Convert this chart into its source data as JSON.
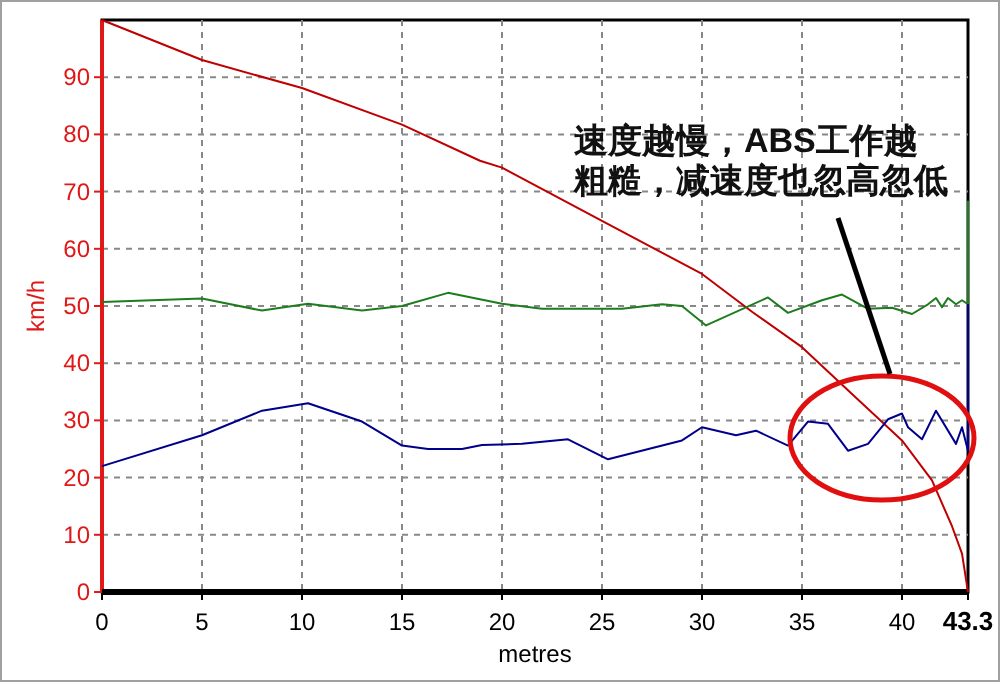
{
  "chart_data": {
    "type": "line",
    "xlabel": "metres",
    "ylabel": "km/h",
    "xlim": [
      0,
      43.3
    ],
    "ylim": [
      0,
      100
    ],
    "xticks": [
      0,
      5,
      10,
      15,
      20,
      25,
      30,
      35,
      40,
      43.3
    ],
    "yticks": [
      0,
      10,
      20,
      30,
      40,
      50,
      60,
      70,
      80,
      90
    ],
    "grid": true,
    "line_style": "solid",
    "marker": "none",
    "series": [
      {
        "color": "#c00000",
        "x": [
          0,
          5,
          10,
          15,
          18.9,
          20,
          25,
          30,
          32.5,
          35,
          37.5,
          40,
          41.5,
          42.5,
          43,
          43.3
        ],
        "values": [
          100,
          93,
          88.1,
          81.7,
          75.4,
          74.2,
          64.9,
          55.6,
          49,
          42.8,
          34.6,
          26.5,
          19.5,
          11.5,
          6.7,
          0
        ]
      },
      {
        "color": "#1e7b1e",
        "x": [
          0,
          5,
          8,
          10.3,
          13,
          15,
          17.3,
          20,
          22,
          26,
          28,
          29,
          30.2,
          33.3,
          34.3,
          36,
          37,
          38.3,
          39.5,
          40.5,
          41.3,
          41.7,
          42,
          42.3,
          42.7,
          43,
          43.3,
          43.3
        ],
        "values": [
          50.7,
          51.3,
          49.2,
          50.4,
          49.2,
          50,
          52.3,
          50.4,
          49.5,
          49.5,
          50.3,
          50,
          46.6,
          51.5,
          48.8,
          51,
          52,
          49.5,
          49.7,
          48.6,
          50.3,
          51.4,
          49.8,
          51.4,
          50.3,
          51,
          50.3,
          68.4
        ]
      },
      {
        "color": "#00008b",
        "x": [
          0,
          5,
          8,
          10.3,
          13,
          15,
          16.3,
          18,
          19,
          21,
          23.3,
          25.3,
          29,
          30,
          31.7,
          32.7,
          34.3,
          35.3,
          36.3,
          37.3,
          38.3,
          39.3,
          40,
          40.3,
          41,
          41.7,
          42.7,
          43,
          43.3,
          43.3
        ],
        "values": [
          22,
          27.4,
          31.7,
          33,
          29.8,
          25.6,
          25,
          25,
          25.7,
          25.9,
          26.7,
          23.2,
          26.5,
          28.8,
          27.4,
          28.2,
          25.6,
          29.8,
          29.4,
          24.7,
          25.9,
          30.2,
          31.2,
          28.8,
          26.7,
          31.7,
          25.9,
          28.8,
          24.7,
          50.3
        ]
      }
    ],
    "annotations": [
      "速度越慢，ABS工作越粗糙，减速度也忽高忽低"
    ]
  }
}
